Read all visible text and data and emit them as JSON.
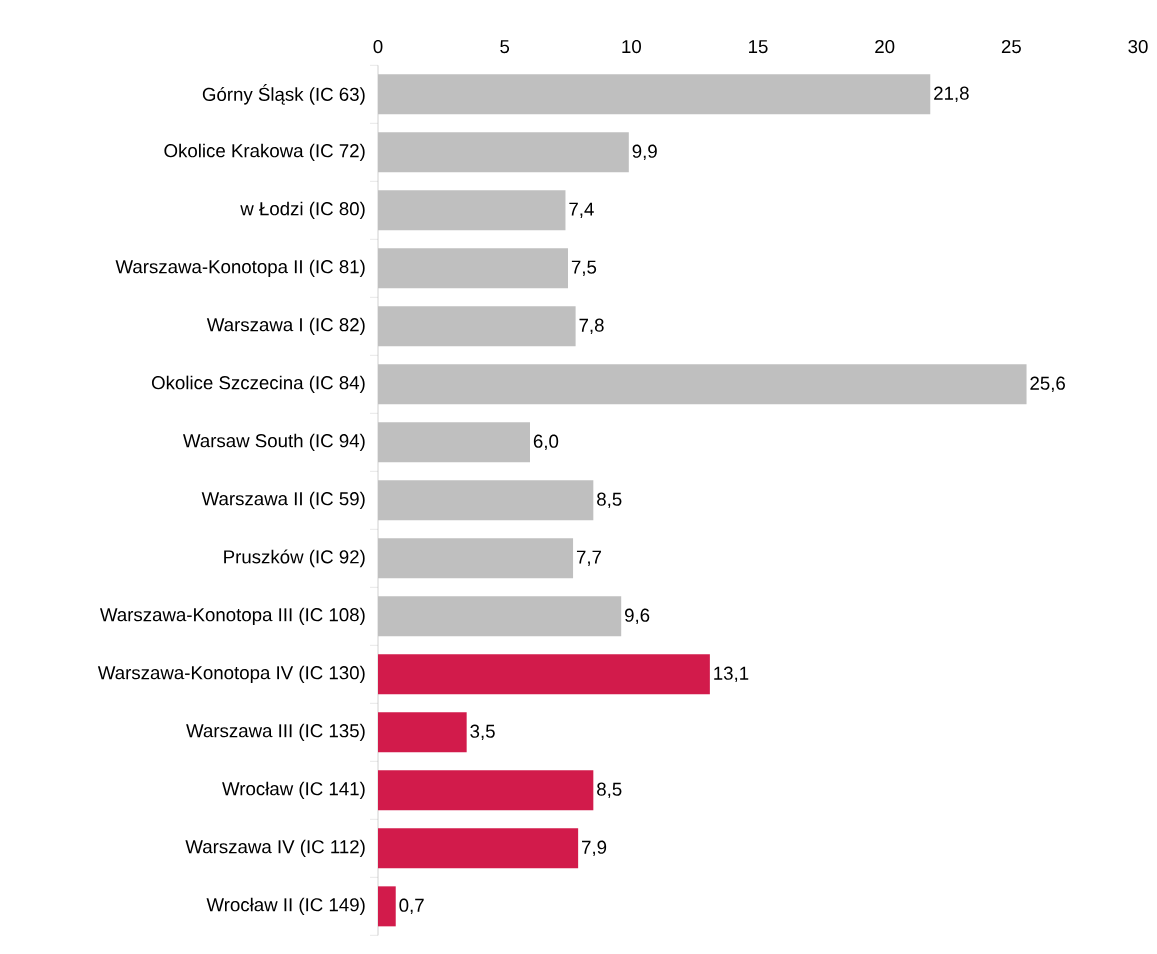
{
  "chart_data": {
    "type": "bar",
    "orientation": "horizontal",
    "categories": [
      "Górny Śląsk (IC 63)",
      "Okolice Krakowa (IC 72)",
      "w Łodzi (IC 80)",
      "Warszawa-Konotopa II (IC 81)",
      "Warszawa I (IC 82)",
      "Okolice Szczecina (IC 84)",
      "Warsaw South (IC 94)",
      "Warszawa II (IC 59)",
      "Pruszków (IC 92)",
      "Warszawa-Konotopa III (IC 108)",
      "Warszawa-Konotopa IV (IC 130)",
      "Warszawa III (IC 135)",
      "Wrocław (IC 141)",
      "Warszawa IV (IC 112)",
      "Wrocław II (IC 149)"
    ],
    "values": [
      21.8,
      9.9,
      7.4,
      7.5,
      7.8,
      25.6,
      6.0,
      8.5,
      7.7,
      9.6,
      13.1,
      3.5,
      8.5,
      7.9,
      0.7
    ],
    "value_labels": [
      "21,8",
      "9,9",
      "7,4",
      "7,5",
      "7,8",
      "25,6",
      "6,0",
      "8,5",
      "7,7",
      "9,6",
      "13,1",
      "3,5",
      "8,5",
      "7,9",
      "0,7"
    ],
    "colors": [
      "#bfbfbf",
      "#bfbfbf",
      "#bfbfbf",
      "#bfbfbf",
      "#bfbfbf",
      "#bfbfbf",
      "#bfbfbf",
      "#bfbfbf",
      "#bfbfbf",
      "#bfbfbf",
      "#d21b4b",
      "#d21b4b",
      "#d21b4b",
      "#d21b4b",
      "#d21b4b"
    ],
    "xlim": [
      0,
      30
    ],
    "xticks": [
      0,
      5,
      10,
      15,
      20,
      25,
      30
    ],
    "grid": false
  }
}
